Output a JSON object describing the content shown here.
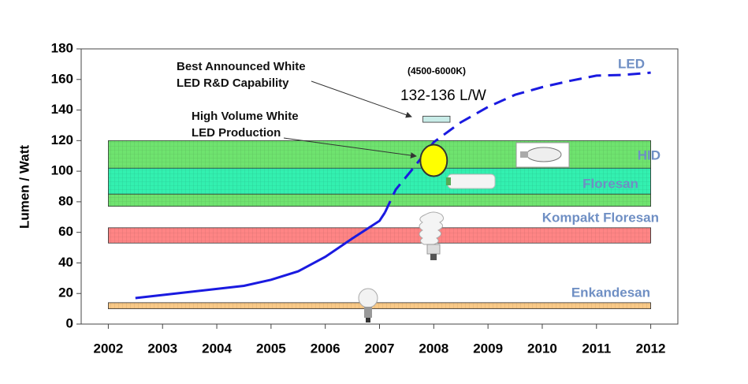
{
  "chart_data": {
    "type": "line",
    "y_label": "Lumen / Watt",
    "xlim": [
      2001.5,
      2012.5
    ],
    "xticks": [
      2002,
      2003,
      2004,
      2005,
      2006,
      2007,
      2008,
      2009,
      2010,
      2011,
      2012
    ],
    "ylim": [
      0,
      180
    ],
    "yticks": [
      0,
      20,
      40,
      60,
      80,
      100,
      120,
      140,
      160,
      180
    ],
    "band_x": [
      2002,
      2012
    ],
    "bands": [
      {
        "name": "HID",
        "range": [
          77,
          120
        ],
        "color": "#6fe36f"
      },
      {
        "name": "Floresan",
        "range": [
          85,
          102
        ],
        "color": "#33f0b0"
      },
      {
        "name": "Kompakt Floresan",
        "range": [
          53,
          63
        ],
        "color": "#ff8585"
      },
      {
        "name": "Enkandesan",
        "range": [
          10,
          14
        ],
        "color": "#f9c987"
      }
    ],
    "series": [
      {
        "name": "LED",
        "color": "#1a1ae0",
        "x": [
          2002.5,
          2003.5,
          2004.5,
          2005,
          2005.5,
          2006,
          2006.5,
          2007,
          2007.1
        ],
        "values": [
          17,
          21,
          25,
          29,
          34.5,
          44,
          56,
          67.5,
          73
        ]
      },
      {
        "color": "#1a1ae0",
        "dashed": true,
        "x": [
          2007.1,
          2007.3,
          2007.6,
          2008,
          2008.5,
          2009,
          2009.5,
          2010,
          2010.5,
          2011,
          2011.5,
          2012
        ],
        "values": [
          73,
          88,
          101,
          119,
          132,
          142,
          150,
          155,
          159,
          162.5,
          163,
          164.5
        ]
      }
    ],
    "rd_capability": {
      "x": [
        2007.8,
        2008.3
      ],
      "y": [
        132,
        136
      ],
      "color": "#c8ece8"
    },
    "production_point": {
      "x": 2008,
      "y": 107,
      "color": "#ffff00"
    },
    "annotations": [
      "Best Announced White LED R&D Capability",
      "High Volume White LED Production",
      "(4500-6000K)",
      "132-136 L/W"
    ]
  }
}
